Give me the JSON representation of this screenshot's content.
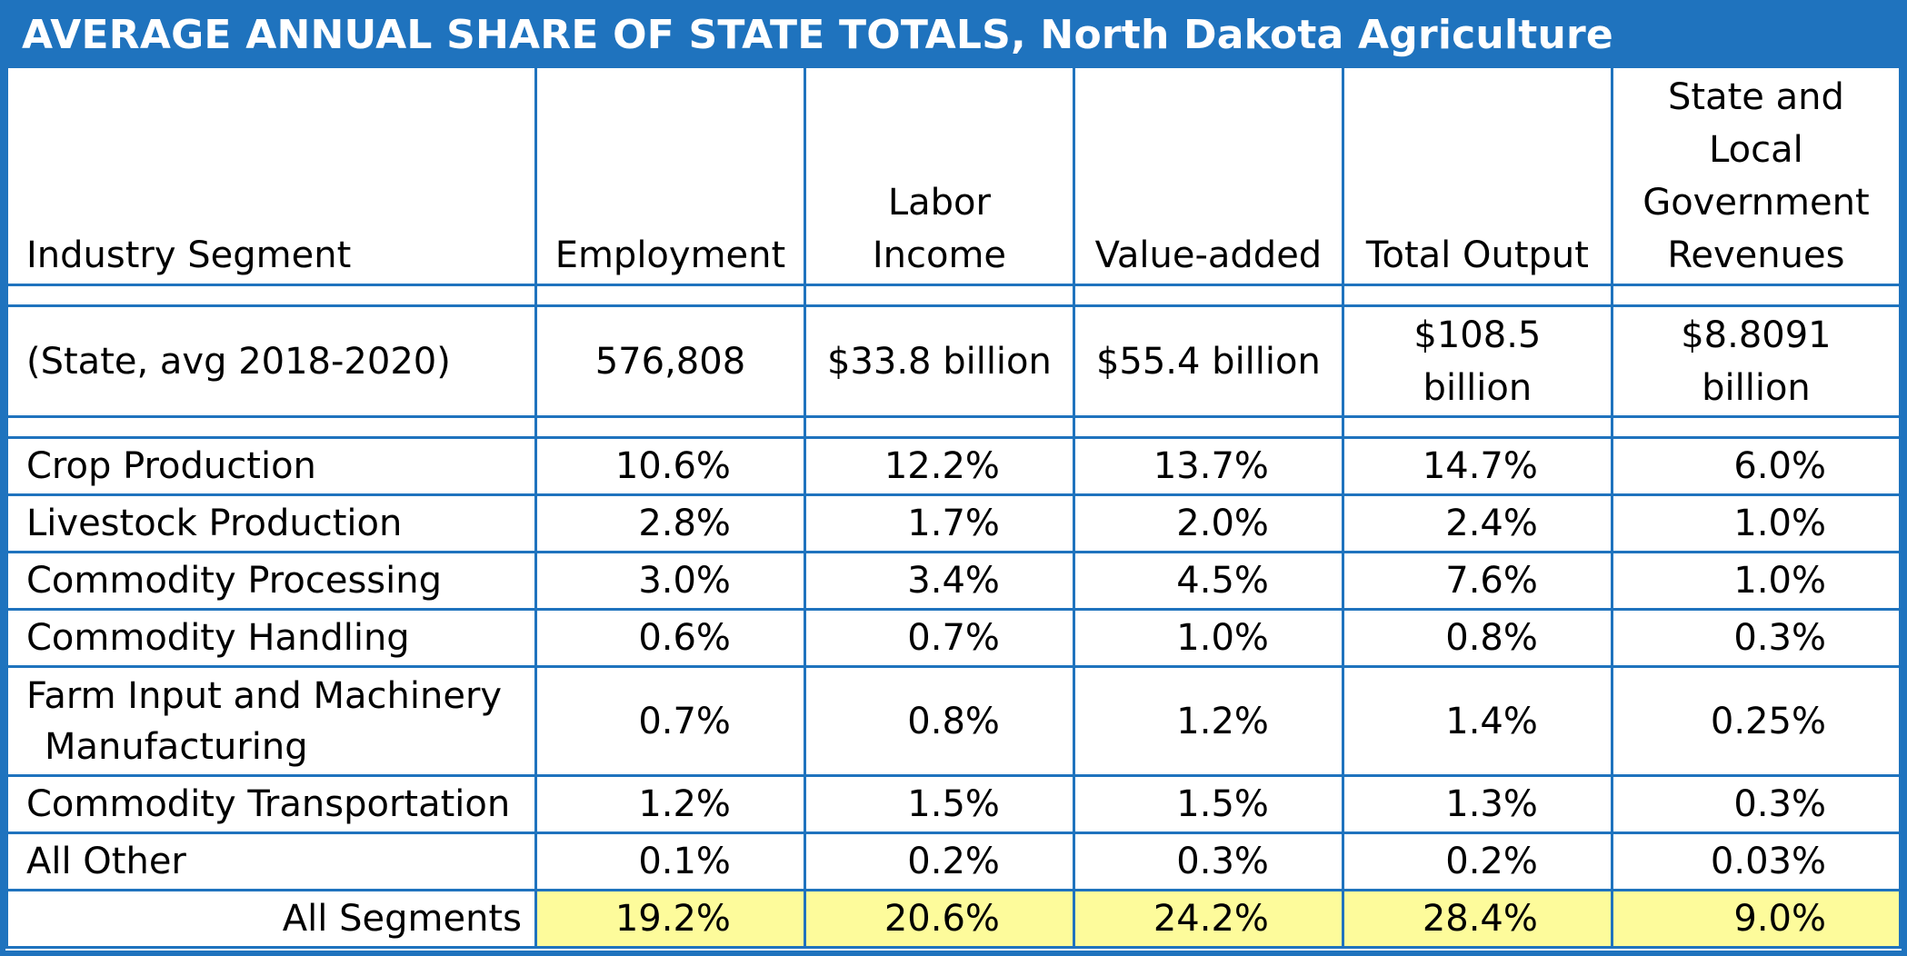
{
  "title": "AVERAGE ANNUAL SHARE OF STATE TOTALS, North Dakota Agriculture",
  "colors": {
    "header_bar": "#1f73be",
    "grid_lines": "#1f73be",
    "total_highlight": "#fdfb9b"
  },
  "columns": {
    "segment": "Industry Segment",
    "employment": "Employment",
    "labor_income": "Labor Income",
    "value_added": "Value-added",
    "total_output": "Total Output",
    "govt_revenues": "State and Local Government Revenues"
  },
  "state_row": {
    "label": "(State, avg 2018-2020)",
    "employment": "576,808",
    "labor_income": "$33.8 billion",
    "value_added": "$55.4 billion",
    "total_output": "$108.5 billion",
    "govt_revenues": "$8.8091 billion"
  },
  "chart_data": {
    "type": "table",
    "title": "AVERAGE ANNUAL SHARE OF STATE TOTALS, North Dakota Agriculture",
    "columns": [
      "Industry Segment",
      "Employment",
      "Labor Income",
      "Value-added",
      "Total Output",
      "State and Local Government Revenues"
    ],
    "state_totals": {
      "label": "(State, avg 2018-2020)",
      "values": [
        "576,808",
        "$33.8 billion",
        "$55.4 billion",
        "$108.5 billion",
        "$8.8091 billion"
      ]
    },
    "rows": [
      {
        "segment": "Crop Production",
        "values": [
          "10.6%",
          "12.2%",
          "13.7%",
          "14.7%",
          "6.0%"
        ]
      },
      {
        "segment": "Livestock Production",
        "values": [
          "2.8%",
          "1.7%",
          "2.0%",
          "2.4%",
          "1.0%"
        ]
      },
      {
        "segment": "Commodity Processing",
        "values": [
          "3.0%",
          "3.4%",
          "4.5%",
          "7.6%",
          "1.0%"
        ]
      },
      {
        "segment": "Commodity Handling",
        "values": [
          "0.6%",
          "0.7%",
          "1.0%",
          "0.8%",
          "0.3%"
        ]
      },
      {
        "segment": "Farm Input and Machinery Manufacturing",
        "values": [
          "0.7%",
          "0.8%",
          "1.2%",
          "1.4%",
          "0.25%"
        ]
      },
      {
        "segment": "Commodity Transportation",
        "values": [
          "1.2%",
          "1.5%",
          "1.5%",
          "1.3%",
          "0.3%"
        ]
      },
      {
        "segment": "All Other",
        "values": [
          "0.1%",
          "0.2%",
          "0.3%",
          "0.2%",
          "0.03%"
        ]
      }
    ],
    "total": {
      "segment": "All Segments",
      "values": [
        "19.2%",
        "20.6%",
        "24.2%",
        "28.4%",
        "9.0%"
      ]
    }
  }
}
